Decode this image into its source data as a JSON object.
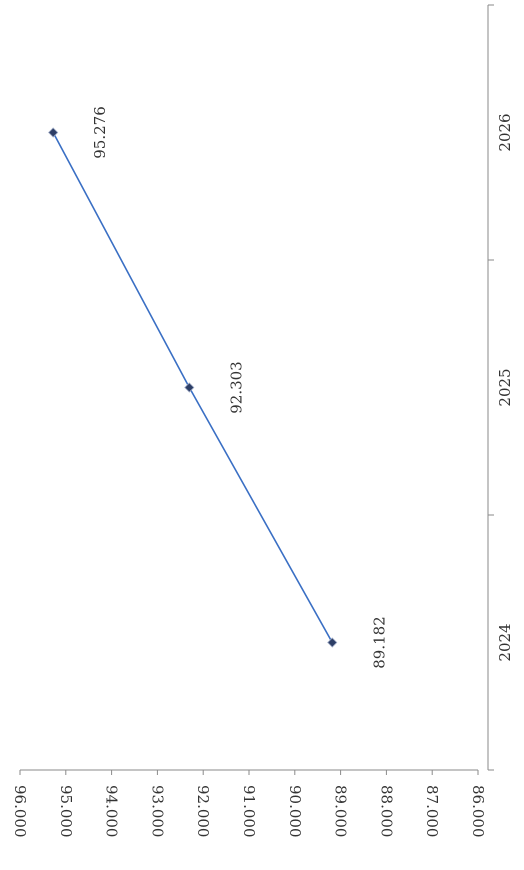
{
  "chart_data": {
    "type": "line",
    "orientation": "rotated-90-clockwise",
    "categories": [
      "2024",
      "2025",
      "2026"
    ],
    "series": [
      {
        "values": [
          89.182,
          92.303,
          95.276
        ],
        "color": "#3a6fc4",
        "marker_color": "#2d3e66"
      }
    ],
    "data_labels": [
      "89.182",
      "92.303",
      "95.276"
    ],
    "y_ticks": [
      "86.000",
      "87.000",
      "88.000",
      "89.000",
      "90.000",
      "91.000",
      "92.000",
      "93.000",
      "94.000",
      "95.000",
      "96.000"
    ],
    "ylim": [
      86,
      96
    ],
    "title": "",
    "xlabel": "",
    "ylabel": "",
    "grid": false,
    "legend": "none"
  }
}
